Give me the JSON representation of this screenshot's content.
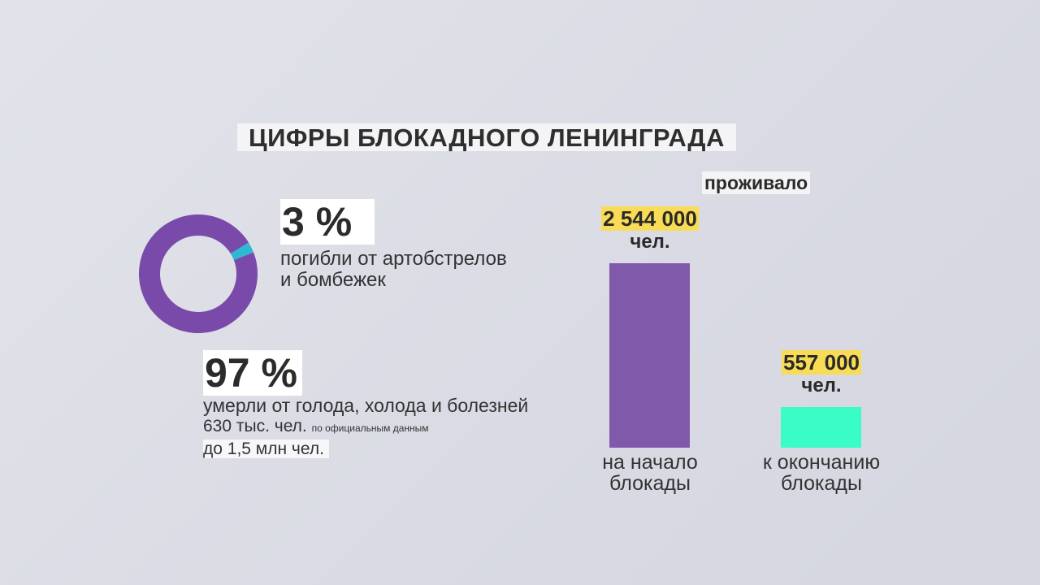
{
  "title": "ЦИФРЫ БЛОКАДНОГО ЛЕНИНГРАДА",
  "donut": {
    "percent_small": "3 %",
    "desc_small": [
      "погибли от артобстрелов",
      "и бомбежек"
    ],
    "percent_large": "97 %",
    "desc_large": "умерли от голода, холода и болезней",
    "official": "630 тыс. чел.",
    "official_note": "по официальным данным",
    "upto": "до 1,5 млн чел."
  },
  "bars": {
    "heading": "проживало"
  },
  "chart_data": [
    {
      "type": "pie",
      "title": "",
      "slices": [
        {
          "label": "погибли от артобстрелов и бомбежек",
          "value": 3,
          "color": "#2fb8d4"
        },
        {
          "label": "умерли от голода, холода и болезней",
          "value": 97,
          "color": "#7a4aab"
        }
      ]
    },
    {
      "type": "bar",
      "title": "проживало",
      "categories": [
        "на начало блокады",
        "к окончанию блокады"
      ],
      "values": [
        2544000,
        557000
      ],
      "value_labels": [
        "2 544 000",
        "557 000"
      ],
      "unit": "чел.",
      "colors": [
        "#8159ab",
        "#3afcc6"
      ],
      "category_lines": [
        [
          "на начало",
          "блокады"
        ],
        [
          "к окончанию",
          "блокады"
        ]
      ],
      "ylim": [
        0,
        2544000
      ]
    }
  ]
}
